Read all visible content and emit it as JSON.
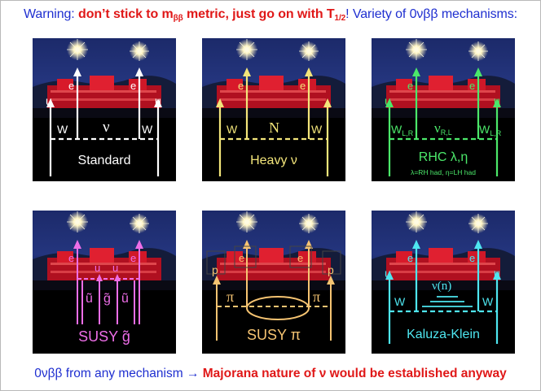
{
  "header": {
    "warning_label": "Warning:",
    "warning_strong": "don’t stick to m",
    "warning_strong_sub": "ββ",
    "warning_strong_2": " metric, just go on with T",
    "warning_strong_sub_2": "1/2",
    "warning_tail": "! Variety of 0νββ mechanisms:"
  },
  "footer": {
    "lead": "0νββ from any mechanism",
    "arrow": "→",
    "strong": "Majorana nature of ν would be established anyway"
  },
  "colors": {
    "standard": "#ffffff",
    "heavy": "#f3e57a",
    "rhc": "#4be86a",
    "susy_g": "#ee6ee8",
    "susy_pi": "#f6c472",
    "kk": "#4ee6f0",
    "blue_text": "#1f2fd0",
    "red_text": "#e01818"
  },
  "panels": {
    "standard": {
      "u_left": "u",
      "u_right": "u",
      "e_left": "e",
      "e_right": "e",
      "w_left": "W",
      "w_right": "W",
      "mid": "ν",
      "name": "Standard"
    },
    "heavy": {
      "e_left": "e",
      "e_right": "e",
      "w_left": "W",
      "w_right": "W",
      "mid": "N",
      "name": "Heavy ν"
    },
    "rhc": {
      "u_left": "u",
      "u_right": "u",
      "e_left": "e",
      "e_right": "e",
      "w_left": "W",
      "w_left_sub": "L,R",
      "w_right": "W",
      "w_right_sub": "L,R",
      "mid": "ν",
      "mid_sub": "R,L",
      "name": "RHC λ,η",
      "note": "λ=RH had, η=LH had"
    },
    "susy_g": {
      "e_left": "e",
      "e_right": "e",
      "u_mid_left": "u",
      "u_mid_right": "u",
      "sq_left": "ũ",
      "gluino": "g̃",
      "sq_right": "ũ",
      "name": "SUSY g̃"
    },
    "susy_pi": {
      "p_left": "p",
      "p_right": "p",
      "e_left": "e",
      "e_right": "e",
      "pi_left": "π",
      "pi_right": "π",
      "name": "SUSY π"
    },
    "kk": {
      "u_left": "u",
      "u_right": "u",
      "e_left": "e",
      "e_right": "e",
      "w_left": "W",
      "w_right": "W",
      "mid": "ν(n)",
      "name": "Kaluza-Klein"
    }
  }
}
